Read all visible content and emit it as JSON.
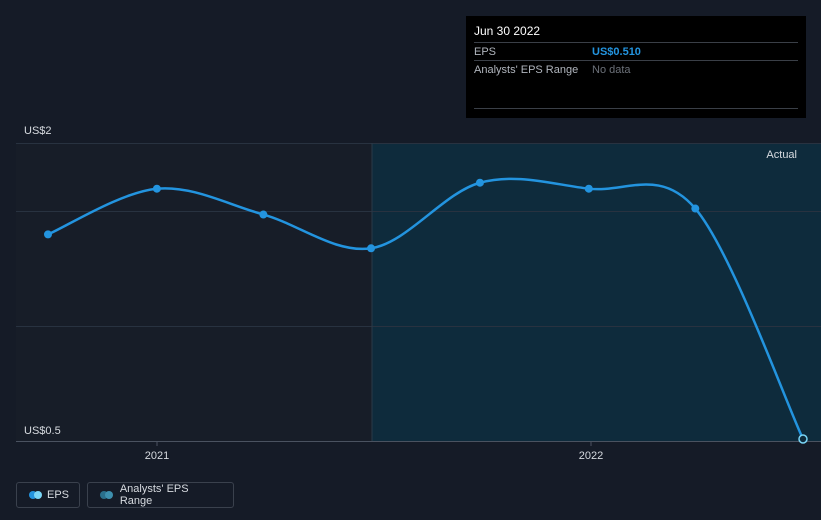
{
  "chart_data": {
    "type": "line",
    "y_axis": {
      "top_label": "US$2",
      "bottom_label": "US$0.5",
      "ylim": [
        0.5,
        2.0
      ]
    },
    "x_axis": {
      "ticks": [
        {
          "label": "2021"
        },
        {
          "label": "2022"
        }
      ]
    },
    "region_label": "Actual",
    "series": [
      {
        "name": "EPS",
        "color": "#2394df",
        "points": [
          {
            "x": "2020-09-30",
            "y": 1.54
          },
          {
            "x": "2020-12-31",
            "y": 1.77
          },
          {
            "x": "2021-03-31",
            "y": 1.64
          },
          {
            "x": "2021-06-30",
            "y": 1.47
          },
          {
            "x": "2021-09-30",
            "y": 1.8
          },
          {
            "x": "2021-12-31",
            "y": 1.77
          },
          {
            "x": "2022-03-31",
            "y": 1.67
          },
          {
            "x": "2022-06-30",
            "y": 0.51
          }
        ]
      }
    ],
    "grid": true
  },
  "tooltip": {
    "date": "Jun 30 2022",
    "rows": [
      {
        "key": "EPS",
        "value": "US$0.510"
      },
      {
        "key": "Analysts' EPS Range",
        "value": "No data"
      }
    ]
  },
  "legend": [
    {
      "label": "EPS",
      "colors": [
        "#2394df",
        "#7ad6f7"
      ]
    },
    {
      "label": "Analysts' EPS Range",
      "colors": [
        "#2a6f8c",
        "#3d8fae"
      ]
    }
  ]
}
